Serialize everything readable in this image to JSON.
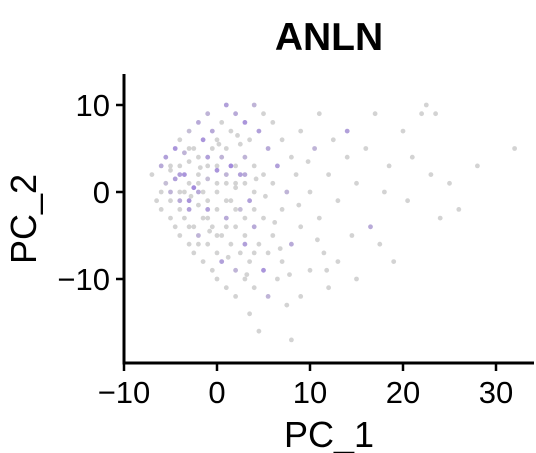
{
  "chart_data": {
    "type": "scatter",
    "title": "ANLN",
    "xlabel": "PC_1",
    "ylabel": "PC_2",
    "xlim": [
      -10,
      34
    ],
    "ylim": [
      -20,
      14
    ],
    "xticks": [
      -10,
      0,
      10,
      20,
      30
    ],
    "yticks": [
      -10,
      0,
      10
    ],
    "xtick_labels": [
      "−10",
      "0",
      "10",
      "20",
      "30"
    ],
    "ytick_labels": [
      "−10",
      "0",
      "10"
    ],
    "grid": false,
    "legend": "none",
    "colors": {
      "low": "#d3d3d3",
      "high": "#8f6ce0",
      "axis": "#000000"
    },
    "points": [
      [
        -7,
        2,
        0
      ],
      [
        -6.5,
        -1,
        0
      ],
      [
        -6,
        3,
        0.4
      ],
      [
        -6,
        -2,
        0
      ],
      [
        -5.5,
        1,
        0.2
      ],
      [
        -5.5,
        4,
        0.5
      ],
      [
        -5,
        -3,
        0
      ],
      [
        -5,
        0,
        0.3
      ],
      [
        -5,
        2.5,
        0
      ],
      [
        -4.5,
        5,
        0.6
      ],
      [
        -4.5,
        -4,
        0
      ],
      [
        -4.5,
        1.5,
        0.5
      ],
      [
        -4,
        3,
        0
      ],
      [
        -4,
        -1,
        0.4
      ],
      [
        -4,
        -5,
        0
      ],
      [
        -4,
        6,
        0
      ],
      [
        -3.5,
        0,
        0
      ],
      [
        -3.5,
        2,
        0.6
      ],
      [
        -3.5,
        -3,
        0
      ],
      [
        -3.5,
        4.5,
        0.3
      ],
      [
        -3,
        -6,
        0
      ],
      [
        -3,
        -2,
        0.5
      ],
      [
        -3,
        1,
        0
      ],
      [
        -3,
        3.5,
        0
      ],
      [
        -3,
        7,
        0.2
      ],
      [
        -2.5,
        -4,
        0
      ],
      [
        -2.5,
        0.5,
        0.7
      ],
      [
        -2.5,
        5,
        0
      ],
      [
        -2.5,
        -7,
        0
      ],
      [
        -2,
        2,
        0
      ],
      [
        -2,
        -1.5,
        0
      ],
      [
        -2,
        8,
        0.4
      ],
      [
        -2,
        -5,
        0.3
      ],
      [
        -2,
        4,
        0
      ],
      [
        -1.5,
        -8,
        0
      ],
      [
        -1.5,
        0,
        0
      ],
      [
        -1.5,
        6,
        0.6
      ],
      [
        -1.5,
        -3,
        0
      ],
      [
        -1,
        1.5,
        0.2
      ],
      [
        -1,
        -6,
        0
      ],
      [
        -1,
        3,
        0
      ],
      [
        -1,
        9,
        0.3
      ],
      [
        -1,
        -2,
        0.5
      ],
      [
        -0.5,
        -9,
        0
      ],
      [
        -0.5,
        5,
        0
      ],
      [
        -0.5,
        -4,
        0
      ],
      [
        -0.5,
        7,
        0.4
      ],
      [
        0,
        0,
        0
      ],
      [
        0,
        -7,
        0
      ],
      [
        0,
        2.5,
        0.6
      ],
      [
        0,
        -10,
        0
      ],
      [
        0,
        6,
        0
      ],
      [
        0,
        -2,
        0
      ],
      [
        0.5,
        4,
        0.3
      ],
      [
        0.5,
        -5,
        0
      ],
      [
        0.5,
        8,
        0
      ],
      [
        0.5,
        -8,
        0.5
      ],
      [
        1,
        1,
        0
      ],
      [
        1,
        -3,
        0.4
      ],
      [
        1,
        10,
        0.5
      ],
      [
        1,
        -11,
        0
      ],
      [
        1,
        5,
        0
      ],
      [
        1.5,
        -6,
        0
      ],
      [
        1.5,
        3,
        0.7
      ],
      [
        1.5,
        -1,
        0
      ],
      [
        1.5,
        7,
        0
      ],
      [
        2,
        -9,
        0.3
      ],
      [
        2,
        0.5,
        0
      ],
      [
        2,
        -4,
        0
      ],
      [
        2,
        9,
        0.4
      ],
      [
        2,
        -12,
        0
      ],
      [
        2.5,
        2,
        0.5
      ],
      [
        2.5,
        -7,
        0
      ],
      [
        2.5,
        5.5,
        0
      ],
      [
        2.5,
        -2,
        0.2
      ],
      [
        3,
        -5,
        0
      ],
      [
        3,
        8,
        0.6
      ],
      [
        3,
        -10,
        0
      ],
      [
        3,
        1,
        0
      ],
      [
        3,
        4,
        0.3
      ],
      [
        3.5,
        -8,
        0
      ],
      [
        3.5,
        -1,
        0.5
      ],
      [
        3.5,
        6,
        0
      ],
      [
        3.5,
        -14,
        0
      ],
      [
        4,
        3,
        0
      ],
      [
        4,
        -4,
        0.4
      ],
      [
        4,
        10,
        0.3
      ],
      [
        4,
        -11,
        0
      ],
      [
        4,
        0,
        0
      ],
      [
        4.5,
        -6,
        0
      ],
      [
        4.5,
        7,
        0.5
      ],
      [
        4.5,
        -16,
        0
      ],
      [
        5,
        2,
        0
      ],
      [
        5,
        -9,
        0.6
      ],
      [
        5,
        9,
        0
      ],
      [
        5,
        -3,
        0
      ],
      [
        5.5,
        5,
        0.4
      ],
      [
        5.5,
        -7,
        0
      ],
      [
        5.5,
        -12,
        0.3
      ],
      [
        6,
        1,
        0
      ],
      [
        6,
        -5,
        0
      ],
      [
        6,
        8,
        0
      ],
      [
        6.5,
        -10,
        0
      ],
      [
        6.5,
        3,
        0.5
      ],
      [
        7,
        -2,
        0
      ],
      [
        7,
        6,
        0
      ],
      [
        7,
        -8,
        0
      ],
      [
        7.5,
        0,
        0.3
      ],
      [
        7.5,
        -13,
        0
      ],
      [
        8,
        4,
        0
      ],
      [
        8,
        -6,
        0.4
      ],
      [
        8,
        -17,
        0
      ],
      [
        8.5,
        2,
        0
      ],
      [
        9,
        -4,
        0
      ],
      [
        9,
        7,
        0
      ],
      [
        9,
        -12,
        0
      ],
      [
        10,
        0,
        0
      ],
      [
        10,
        -9,
        0
      ],
      [
        10.5,
        5,
        0.3
      ],
      [
        11,
        -3,
        0
      ],
      [
        11,
        9,
        0
      ],
      [
        11.5,
        -7,
        0
      ],
      [
        12,
        2,
        0
      ],
      [
        12,
        -11,
        0
      ],
      [
        12.5,
        6,
        0
      ],
      [
        13,
        -1,
        0
      ],
      [
        13,
        -8,
        0
      ],
      [
        14,
        4,
        0
      ],
      [
        14,
        7,
        0.5
      ],
      [
        14.5,
        -5,
        0
      ],
      [
        15,
        1,
        0
      ],
      [
        15,
        -10,
        0
      ],
      [
        16,
        5,
        0
      ],
      [
        16.5,
        -4,
        0.4
      ],
      [
        17,
        9,
        0
      ],
      [
        17.5,
        -6,
        0
      ],
      [
        18,
        0,
        0
      ],
      [
        18.5,
        3,
        0
      ],
      [
        19,
        -8,
        0
      ],
      [
        20,
        7,
        0
      ],
      [
        20.5,
        -1,
        0
      ],
      [
        21,
        4,
        0
      ],
      [
        22,
        9,
        0
      ],
      [
        22.5,
        10,
        0
      ],
      [
        23,
        2,
        0
      ],
      [
        23.5,
        9,
        0
      ],
      [
        24,
        -3,
        0
      ],
      [
        25,
        1,
        0
      ],
      [
        26,
        -2,
        0
      ],
      [
        28,
        3,
        0
      ],
      [
        32,
        5,
        0
      ],
      [
        -6,
        0,
        0
      ],
      [
        -5,
        -1,
        0
      ],
      [
        -4,
        2,
        0.5
      ],
      [
        -3,
        -4,
        0
      ],
      [
        -2,
        0,
        0.4
      ],
      [
        -1,
        -1,
        0
      ],
      [
        0,
        1,
        0
      ],
      [
        1,
        2,
        0.3
      ],
      [
        2,
        -2,
        0
      ],
      [
        3,
        -3,
        0
      ],
      [
        -4,
        -2,
        0
      ],
      [
        -3,
        5,
        0
      ],
      [
        -2,
        -6,
        0
      ],
      [
        -1,
        4,
        0.5
      ],
      [
        0,
        -5,
        0
      ],
      [
        1,
        -4,
        0
      ],
      [
        2,
        3,
        0
      ],
      [
        3,
        2,
        0.4
      ],
      [
        4,
        -7,
        0
      ],
      [
        -5,
        3,
        0
      ],
      [
        -4,
        0,
        0
      ],
      [
        -3,
        -1,
        0.6
      ],
      [
        -2,
        1,
        0
      ],
      [
        -1,
        -3,
        0
      ],
      [
        0,
        3,
        0
      ],
      [
        1,
        -1,
        0
      ],
      [
        2,
        1,
        0
      ],
      [
        3,
        -6,
        0.5
      ],
      [
        4,
        -2,
        0
      ],
      [
        -2.8,
        -0.5,
        0
      ],
      [
        -1.8,
        2.8,
        0
      ],
      [
        -0.8,
        -4.5,
        0
      ],
      [
        0.2,
        5.5,
        0
      ],
      [
        1.2,
        -7.5,
        0
      ],
      [
        2.2,
        6.5,
        0
      ],
      [
        3.2,
        -9.5,
        0
      ],
      [
        4.2,
        1.5,
        0
      ],
      [
        5.2,
        -0.5,
        0
      ],
      [
        6.2,
        -3.5,
        0
      ],
      [
        6.8,
        -6.5,
        0
      ],
      [
        7.8,
        -9.5,
        0
      ],
      [
        8.8,
        -1.5,
        0
      ],
      [
        9.8,
        3.5,
        0
      ],
      [
        10.8,
        -5.5,
        0
      ],
      [
        11.8,
        -9,
        0
      ]
    ]
  }
}
